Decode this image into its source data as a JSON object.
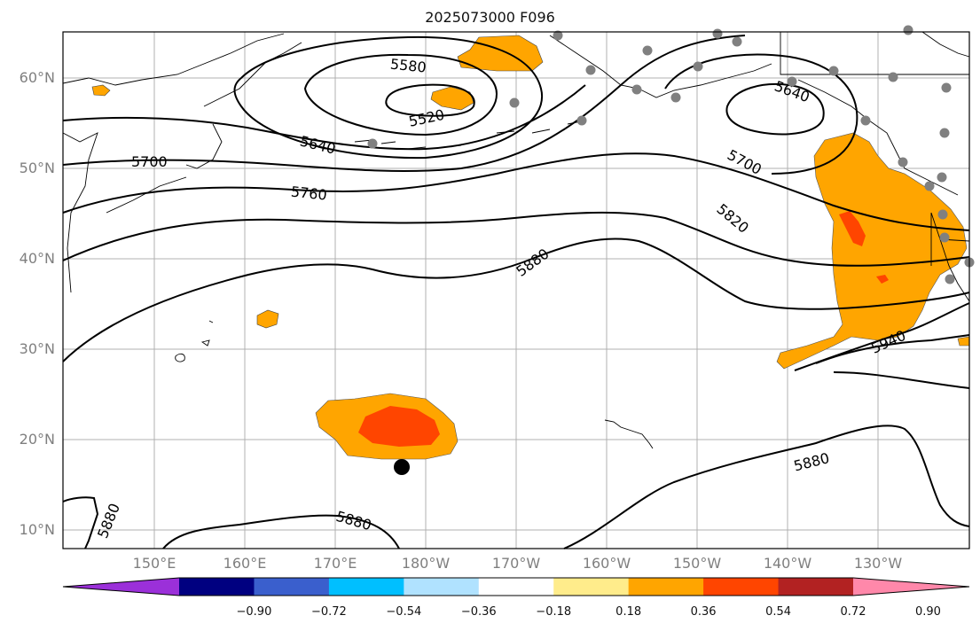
{
  "title": "2025073000 F096",
  "map": {
    "lat_labels": [
      "60°N",
      "50°N",
      "40°N",
      "30°N",
      "20°N",
      "10°N"
    ],
    "lon_labels": [
      "150°E",
      "160°E",
      "170°E",
      "180°W",
      "170°W",
      "160°W",
      "150°W",
      "140°W",
      "130°W"
    ],
    "contour_labels": [
      "5580",
      "5520",
      "5640",
      "5700",
      "5760",
      "5880",
      "5640",
      "5700",
      "5820",
      "5940",
      "5880",
      "5880",
      "5880"
    ],
    "fill_colors": {
      "orange": "#ffa500",
      "red": "#ff4500"
    },
    "marker_color": "#808080"
  },
  "colorbar": {
    "colors": [
      "#9b30d9",
      "#000080",
      "#3a5fcd",
      "#00bfff",
      "#b0e2ff",
      "#ffffff",
      "#ffec8b",
      "#ffa500",
      "#ff4500",
      "#b22222",
      "#ff88aa"
    ],
    "tick_labels": [
      "−0.90",
      "−0.72",
      "−0.54",
      "−0.36",
      "−0.18",
      "0.18",
      "0.36",
      "0.54",
      "0.72",
      "0.90"
    ]
  }
}
